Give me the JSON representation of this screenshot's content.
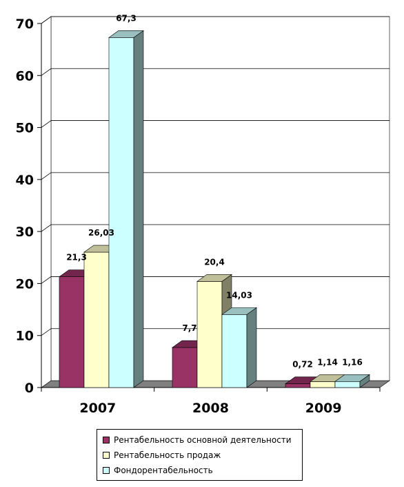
{
  "chart_data": {
    "type": "bar",
    "categories": [
      "2007",
      "2008",
      "2009"
    ],
    "series": [
      {
        "name": "Рентабельность основной деятельности",
        "values": [
          21.3,
          7.7,
          0.72
        ],
        "labels": [
          "21,3",
          "7,7",
          "0,72"
        ],
        "color": "#993366"
      },
      {
        "name": "Рентабельность продаж",
        "values": [
          26.03,
          20.4,
          1.14
        ],
        "labels": [
          "26,03",
          "20,4",
          "1,14"
        ],
        "color": "#FFFFCC"
      },
      {
        "name": "Фондорентабельность",
        "values": [
          67.3,
          14.03,
          1.16
        ],
        "labels": [
          "67,3",
          "14,03",
          "1,16"
        ],
        "color": "#CCFFFF"
      }
    ],
    "yticks": [
      "0",
      "10",
      "20",
      "30",
      "40",
      "50",
      "60",
      "70"
    ],
    "ylim": [
      0,
      70
    ],
    "grid": true,
    "legend_position": "bottom"
  }
}
